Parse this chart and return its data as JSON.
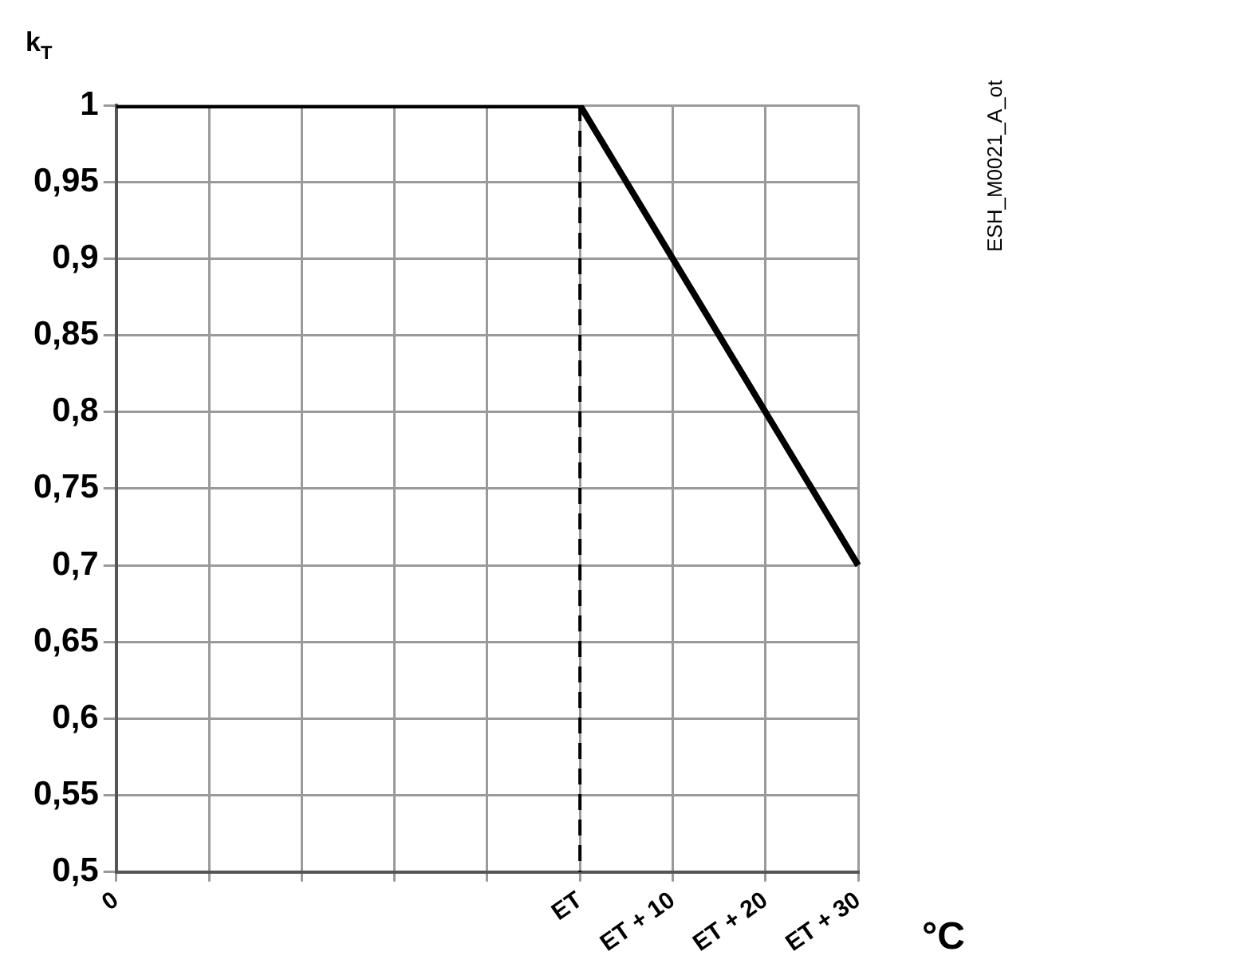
{
  "chart_data": {
    "type": "line",
    "ylabel": "k$_{T}$",
    "xlabel": "°C",
    "annotations": [
      "ESH_M0021_A_ot"
    ],
    "categories": [
      "0",
      null,
      null,
      null,
      null,
      "ET",
      "ET + 10",
      "ET + 20",
      "ET + 30"
    ],
    "series": [
      {
        "color": "#000000",
        "values": [
          1,
          1,
          1,
          1,
          1,
          1,
          0.9,
          0.8,
          0.7
        ]
      }
    ],
    "ylim": [
      0.5,
      1
    ],
    "yticks": [
      {
        "value": 0.5,
        "label": "0,5"
      },
      {
        "value": 0.55,
        "label": "0,55"
      },
      {
        "value": 0.6,
        "label": "0,6"
      },
      {
        "value": 0.65,
        "label": "0,65"
      },
      {
        "value": 0.7,
        "label": "0,7"
      },
      {
        "value": 0.75,
        "label": "0,75"
      },
      {
        "value": 0.8,
        "label": "0,8"
      },
      {
        "value": 0.85,
        "label": "0,85"
      },
      {
        "value": 0.9,
        "label": "0,9"
      },
      {
        "value": 0.95,
        "label": "0,95"
      },
      {
        "value": 1,
        "label": "1"
      }
    ],
    "ref_lines": [
      {
        "axis": "x",
        "value": "ET",
        "color": "#000000",
        "line_style": "dashed"
      }
    ],
    "grid": true,
    "marker": "none",
    "line_style": "solid",
    "legend": false
  }
}
